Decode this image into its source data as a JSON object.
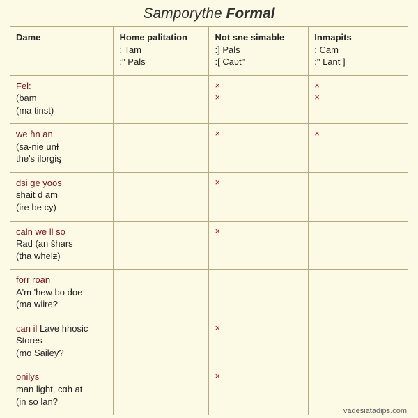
{
  "title_prefix": "Samporythe ",
  "title_strong": "Formal",
  "footer": "vadesiatadips.com",
  "columns": [
    {
      "head": "Dame",
      "sub1": "",
      "sub2": ""
    },
    {
      "head": "Home palitation",
      "sub1": ": Tam",
      "sub2": ":\" Pals"
    },
    {
      "head": "Not sne simable",
      "sub1": ":] Pals",
      "sub2": ":[ Caʋt\""
    },
    {
      "head": "Inmapits",
      "sub1": ": Cam",
      "sub2": ":\" Lant ]"
    }
  ],
  "rows": [
    {
      "head": "Fel:",
      "l2": "(bam",
      "l3": "(ma tinst)",
      "c1a": "",
      "c1b": "",
      "c2a": "×",
      "c2b": "×",
      "c3a": "×",
      "c3b": "×"
    },
    {
      "head": "we ɦn an",
      "l2": "(sa-nie unƗ",
      "l3": "the's ilorgiᶊ",
      "c1a": "",
      "c1b": "",
      "c2a": "×",
      "c2b": "",
      "c3a": "×",
      "c3b": ""
    },
    {
      "head": "dsi ge yoos",
      "l2": "shait d am",
      "l3": "(ire be cy)",
      "c1a": "",
      "c1b": "",
      "c2a": "×",
      "c2b": "",
      "c3a": "",
      "c3b": ""
    },
    {
      "head": "caln we ll so",
      "l2": "Rad (an šhars",
      "l3": "(tha whelƶ)",
      "c1a": "",
      "c1b": "",
      "c2a": "×",
      "c2b": "",
      "c3a": "",
      "c3b": ""
    },
    {
      "head": "forr roan",
      "l2": "A'm 'hew bo doe",
      "l3": "(ma wiire?",
      "c1a": "",
      "c1b": "",
      "c2a": "",
      "c2b": "",
      "c3a": "",
      "c3b": ""
    },
    {
      "head": "can il",
      "head2": " Lave hhosic",
      "l2": "Stores",
      "l3": "(mo Saiƚey?",
      "c1a": "",
      "c1b": "",
      "c2a": "×",
      "c2b": "",
      "c3a": "",
      "c3b": ""
    },
    {
      "head": "onilys",
      "l2": "man light, cɑh at",
      "l3": "(in so lan?",
      "c1a": "",
      "c1b": "",
      "c2a": "×",
      "c2b": "",
      "c3a": "",
      "c3b": ""
    }
  ]
}
